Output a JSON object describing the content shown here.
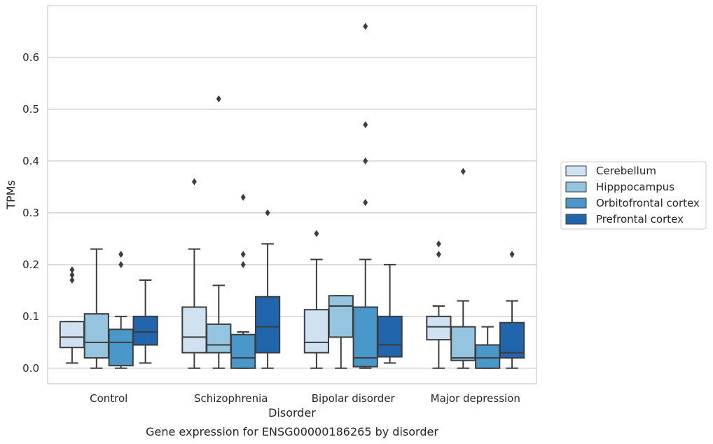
{
  "chart_data": {
    "type": "box",
    "title": "",
    "caption": "Gene expression for ENSG00000186265 by disorder",
    "xlabel": "Disorder",
    "ylabel": "TPMs",
    "ylim": [
      -0.03,
      0.7
    ],
    "yticks": [
      "0.0",
      "0.1",
      "0.2",
      "0.3",
      "0.4",
      "0.5",
      "0.6"
    ],
    "grid": "horizontal",
    "legend_position": "right",
    "categories": [
      "Control",
      "Schizophrenia",
      "Bipolar disorder",
      "Major depression"
    ],
    "series": [
      {
        "name": "Cerebellum",
        "color": "#d0e1f2",
        "boxes": [
          {
            "whislo": 0.01,
            "q1": 0.04,
            "med": 0.06,
            "q3": 0.09,
            "whishi": 0.09,
            "fliers": [
              0.17,
              0.18,
              0.19
            ]
          },
          {
            "whislo": 0.0,
            "q1": 0.03,
            "med": 0.06,
            "q3": 0.118,
            "whishi": 0.23,
            "fliers": [
              0.36
            ]
          },
          {
            "whislo": 0.0,
            "q1": 0.03,
            "med": 0.05,
            "q3": 0.113,
            "whishi": 0.21,
            "fliers": [
              0.26
            ]
          },
          {
            "whislo": 0.0,
            "q1": 0.055,
            "med": 0.08,
            "q3": 0.1,
            "whishi": 0.12,
            "fliers": [
              0.22,
              0.24
            ]
          }
        ]
      },
      {
        "name": "Hipppocampus",
        "color": "#94c4df",
        "boxes": [
          {
            "whislo": 0.0,
            "q1": 0.02,
            "med": 0.05,
            "q3": 0.105,
            "whishi": 0.23,
            "fliers": []
          },
          {
            "whislo": 0.0,
            "q1": 0.03,
            "med": 0.045,
            "q3": 0.085,
            "whishi": 0.16,
            "fliers": [
              0.52
            ]
          },
          {
            "whislo": 0.0,
            "q1": 0.06,
            "med": 0.12,
            "q3": 0.14,
            "whishi": 0.14,
            "fliers": []
          },
          {
            "whislo": 0.0,
            "q1": 0.015,
            "med": 0.02,
            "q3": 0.08,
            "whishi": 0.13,
            "fliers": [
              0.38
            ]
          }
        ]
      },
      {
        "name": "Orbitofrontal cortex",
        "color": "#4a98c9",
        "boxes": [
          {
            "whislo": 0.0,
            "q1": 0.005,
            "med": 0.05,
            "q3": 0.075,
            "whishi": 0.1,
            "fliers": [
              0.2,
              0.22
            ]
          },
          {
            "whislo": 0.0,
            "q1": 0.0,
            "med": 0.02,
            "q3": 0.065,
            "whishi": 0.07,
            "fliers": [
              0.2,
              0.22,
              0.33
            ]
          },
          {
            "whislo": 0.0,
            "q1": 0.003,
            "med": 0.02,
            "q3": 0.118,
            "whishi": 0.21,
            "fliers": [
              0.32,
              0.4,
              0.47,
              0.66
            ]
          },
          {
            "whislo": 0.0,
            "q1": 0.0,
            "med": 0.02,
            "q3": 0.045,
            "whishi": 0.08,
            "fliers": []
          }
        ]
      },
      {
        "name": "Prefrontal cortex",
        "color": "#2166ac",
        "boxes": [
          {
            "whislo": 0.01,
            "q1": 0.045,
            "med": 0.07,
            "q3": 0.1,
            "whishi": 0.17,
            "fliers": []
          },
          {
            "whislo": 0.0,
            "q1": 0.03,
            "med": 0.08,
            "q3": 0.138,
            "whishi": 0.24,
            "fliers": [
              0.3
            ]
          },
          {
            "whislo": 0.01,
            "q1": 0.022,
            "med": 0.045,
            "q3": 0.1,
            "whishi": 0.2,
            "fliers": []
          },
          {
            "whislo": 0.0,
            "q1": 0.02,
            "med": 0.03,
            "q3": 0.088,
            "whishi": 0.13,
            "fliers": [
              0.22
            ]
          }
        ]
      }
    ]
  }
}
